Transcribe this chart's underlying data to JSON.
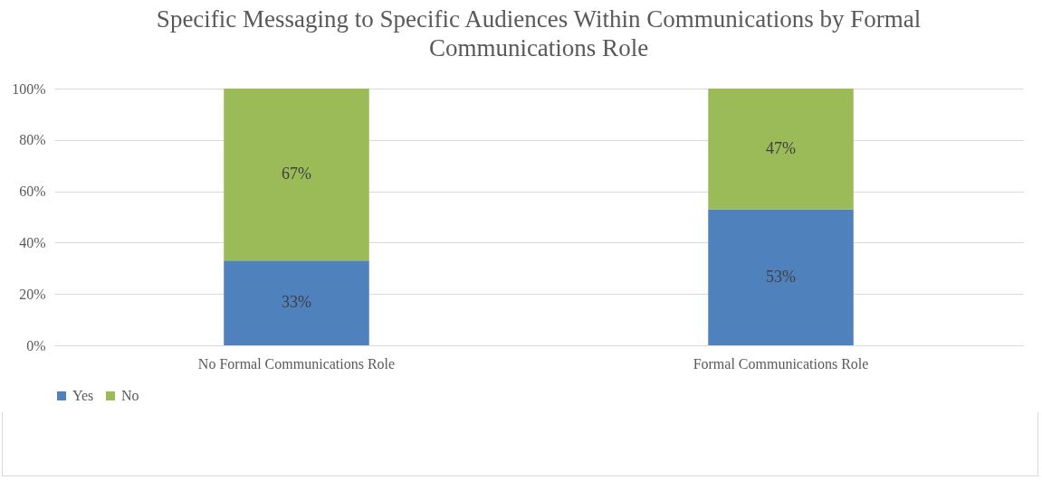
{
  "chart_data": {
    "type": "bar",
    "title": "Specific Messaging to Specific Audiences Within Communications by Formal Communications Role",
    "categories": [
      "No Formal Communications Role",
      "Formal Communications Role"
    ],
    "stacked": true,
    "series": [
      {
        "name": "Yes",
        "color": "#4f81bd",
        "values": [
          33,
          53
        ],
        "value_labels": [
          "33%",
          "53%"
        ]
      },
      {
        "name": "No",
        "color": "#9bbb59",
        "values": [
          67,
          47
        ],
        "value_labels": [
          "67%",
          "47%"
        ]
      }
    ],
    "ylim": [
      0,
      100
    ],
    "yticks": [
      {
        "value": 0,
        "label": "0%"
      },
      {
        "value": 20,
        "label": "20%"
      },
      {
        "value": 40,
        "label": "40%"
      },
      {
        "value": 60,
        "label": "60%"
      },
      {
        "value": 80,
        "label": "80%"
      },
      {
        "value": 100,
        "label": "100%"
      }
    ],
    "grid": "y",
    "legend": "bottom"
  }
}
